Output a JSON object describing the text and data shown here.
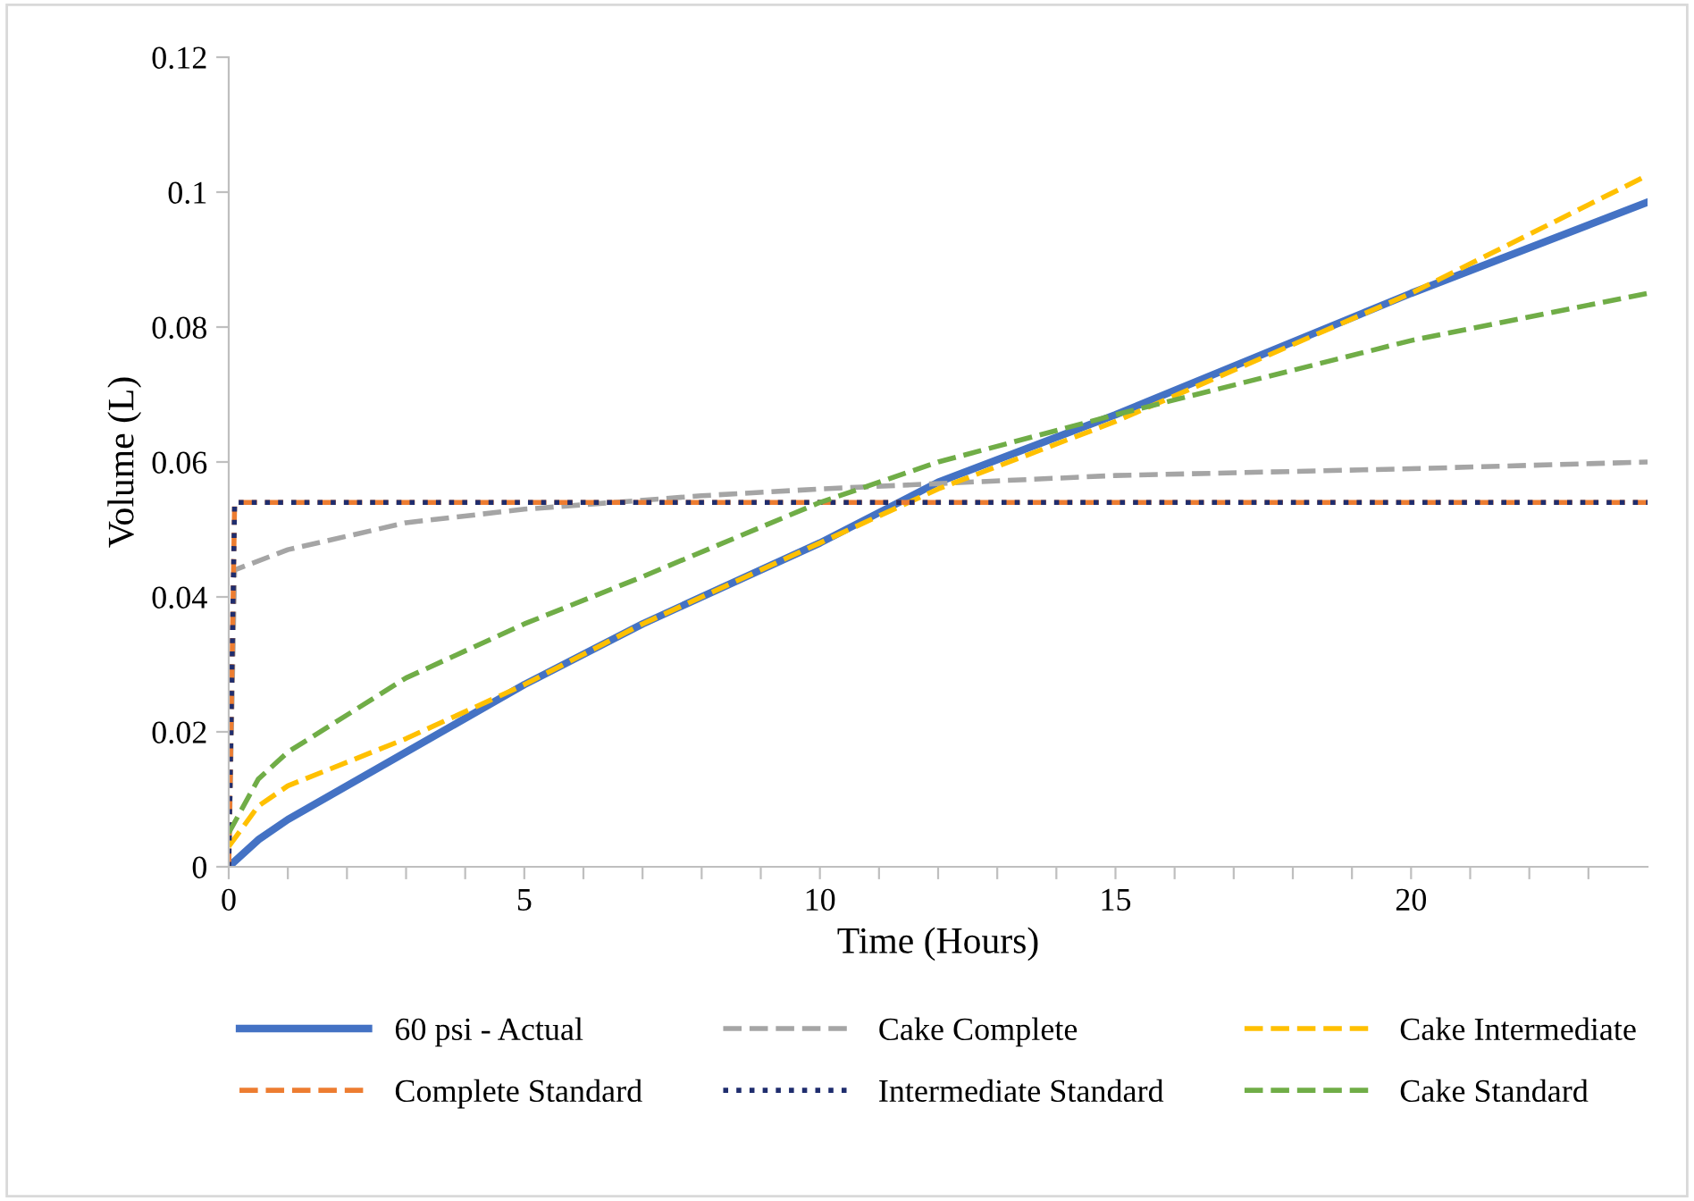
{
  "chart_data": {
    "type": "line",
    "xlabel": "Time (Hours)",
    "ylabel": "Volume (L)",
    "xlim": [
      0,
      24
    ],
    "ylim": [
      0,
      0.12
    ],
    "xticks": [
      0,
      {
        "value": 1,
        "label": null
      },
      {
        "value": 2,
        "label": null
      },
      {
        "value": 3,
        "label": null
      },
      {
        "value": 4,
        "label": null
      },
      5,
      {
        "value": 6,
        "label": null
      },
      {
        "value": 7,
        "label": null
      },
      {
        "value": 8,
        "label": null
      },
      {
        "value": 9,
        "label": null
      },
      10,
      {
        "value": 11,
        "label": null
      },
      {
        "value": 12,
        "label": null
      },
      {
        "value": 13,
        "label": null
      },
      {
        "value": 14,
        "label": null
      },
      15,
      {
        "value": 16,
        "label": null
      },
      {
        "value": 17,
        "label": null
      },
      {
        "value": 18,
        "label": null
      },
      {
        "value": 19,
        "label": null
      },
      20,
      {
        "value": 21,
        "label": null
      },
      {
        "value": 22,
        "label": null
      },
      {
        "value": 23,
        "label": null
      }
    ],
    "yticks": [
      0,
      0.02,
      0.04,
      0.06,
      0.08,
      0.1,
      0.12
    ],
    "grid": false,
    "legend": "bottom",
    "marker": "none",
    "series": [
      {
        "name": "60 psi - Actual",
        "color": "#4472c4",
        "line_style": "solid",
        "x": [
          0,
          0.5,
          1,
          2,
          3,
          5,
          7,
          10,
          12,
          15,
          20,
          24
        ],
        "values": [
          0,
          0.004,
          0.007,
          0.012,
          0.017,
          0.027,
          0.036,
          0.048,
          0.057,
          0.067,
          0.085,
          0.0985
        ]
      },
      {
        "name": "Cake Complete",
        "color": "#a5a5a5",
        "line_style": "dashed",
        "x": [
          0,
          0.1,
          1,
          3,
          5,
          8,
          10,
          15,
          20,
          24
        ],
        "values": [
          0,
          0.044,
          0.047,
          0.051,
          0.053,
          0.055,
          0.056,
          0.058,
          0.059,
          0.06
        ]
      },
      {
        "name": "Cake Intermediate",
        "color": "#ffc000",
        "line_style": "dashed",
        "x": [
          0,
          0.5,
          1,
          3,
          5,
          7,
          10,
          12,
          15,
          20,
          24
        ],
        "values": [
          0.003,
          0.009,
          0.012,
          0.019,
          0.027,
          0.036,
          0.048,
          0.056,
          0.066,
          0.085,
          0.1025
        ]
      },
      {
        "name": "Complete Standard",
        "color": "#ed7d31",
        "line_style": "dashed",
        "x": [
          0,
          0.1,
          24
        ],
        "values": [
          0,
          0.054,
          0.054
        ]
      },
      {
        "name": "Intermediate Standard",
        "color": "#1f2d6e",
        "line_style": "dotted",
        "x": [
          0,
          0.1,
          24
        ],
        "values": [
          0,
          0.054,
          0.054
        ]
      },
      {
        "name": "Cake Standard",
        "color": "#70ad47",
        "line_style": "dashed",
        "x": [
          0,
          0.5,
          1,
          3,
          5,
          7,
          10,
          12,
          15,
          20,
          24
        ],
        "values": [
          0.005,
          0.013,
          0.017,
          0.028,
          0.036,
          0.043,
          0.054,
          0.06,
          0.067,
          0.078,
          0.085
        ]
      }
    ]
  }
}
